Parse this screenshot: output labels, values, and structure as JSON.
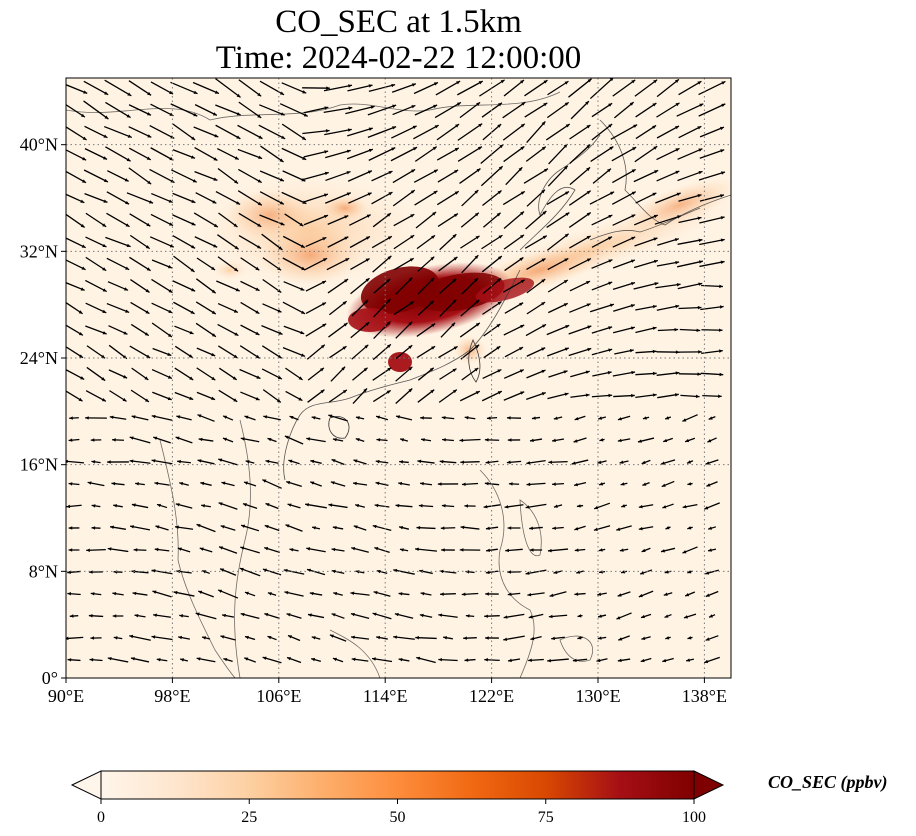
{
  "title": {
    "line1": "CO_SEC at 1.5km",
    "line2": "Time: 2024-02-22 12:00:00"
  },
  "map": {
    "extent_lon": [
      90,
      140
    ],
    "extent_lat": [
      0,
      45
    ],
    "lon_ticks": [
      {
        "value": 90,
        "label": "90°E"
      },
      {
        "value": 98,
        "label": "98°E"
      },
      {
        "value": 106,
        "label": "106°E"
      },
      {
        "value": 114,
        "label": "114°E"
      },
      {
        "value": 122,
        "label": "122°E"
      },
      {
        "value": 130,
        "label": "130°E"
      },
      {
        "value": 138,
        "label": "138°E"
      }
    ],
    "lat_ticks": [
      {
        "value": 0,
        "label": "0°"
      },
      {
        "value": 8,
        "label": "8°N"
      },
      {
        "value": 16,
        "label": "16°N"
      },
      {
        "value": 24,
        "label": "24°N"
      },
      {
        "value": 32,
        "label": "32°N"
      },
      {
        "value": 40,
        "label": "40°N"
      }
    ]
  },
  "colorbar": {
    "label": "CO_SEC (ppbv)",
    "ticks": [
      "0",
      "25",
      "50",
      "75",
      "100"
    ],
    "colors": [
      "#fff5eb",
      "#fee6ce",
      "#fdd0a2",
      "#fdae6b",
      "#fd8d3c",
      "#f16913",
      "#d94801",
      "#a50f15",
      "#7f0000"
    ]
  }
}
